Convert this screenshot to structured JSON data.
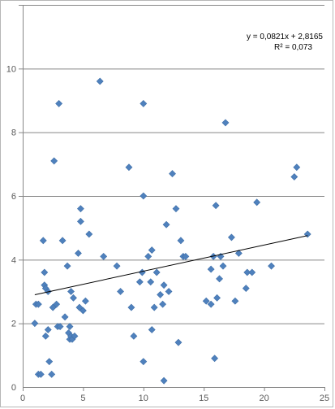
{
  "chart_data": {
    "type": "scatter",
    "title": "",
    "xlabel": "",
    "ylabel": "",
    "xlim": [
      0,
      25
    ],
    "ylim": [
      0,
      12
    ],
    "x_ticks": [
      0,
      5,
      10,
      15,
      20,
      25
    ],
    "y_ticks": [
      0,
      2,
      4,
      6,
      8,
      10
    ],
    "y_grid": [
      2,
      4,
      6,
      8,
      10,
      12
    ],
    "grid": "horizontal",
    "legend": "none",
    "colors": {
      "marker": "#4f81bd",
      "trendline": "#000000",
      "gridline": "#878787"
    },
    "series": [
      {
        "marker": "diamond",
        "points": [
          [
            1.0,
            2.0
          ],
          [
            1.1,
            2.6
          ],
          [
            1.3,
            2.6
          ],
          [
            1.3,
            0.4
          ],
          [
            1.5,
            0.4
          ],
          [
            1.7,
            4.6
          ],
          [
            1.8,
            3.2
          ],
          [
            1.8,
            3.6
          ],
          [
            1.9,
            1.6
          ],
          [
            1.9,
            3.1
          ],
          [
            2.1,
            3.0
          ],
          [
            2.1,
            1.8
          ],
          [
            2.2,
            0.8
          ],
          [
            2.4,
            0.4
          ],
          [
            2.5,
            2.5
          ],
          [
            2.6,
            7.1
          ],
          [
            2.8,
            2.6
          ],
          [
            2.9,
            1.9
          ],
          [
            3.0,
            8.9
          ],
          [
            3.1,
            1.9
          ],
          [
            3.3,
            4.6
          ],
          [
            3.5,
            2.2
          ],
          [
            3.7,
            3.8
          ],
          [
            3.8,
            1.7
          ],
          [
            3.9,
            1.9
          ],
          [
            3.9,
            1.5
          ],
          [
            4.0,
            3.0
          ],
          [
            4.0,
            1.6
          ],
          [
            4.1,
            1.5
          ],
          [
            4.2,
            2.8
          ],
          [
            4.3,
            1.6
          ],
          [
            4.6,
            4.2
          ],
          [
            4.7,
            2.5
          ],
          [
            4.8,
            5.2
          ],
          [
            4.8,
            5.6
          ],
          [
            5.0,
            2.4
          ],
          [
            5.2,
            2.7
          ],
          [
            5.5,
            4.8
          ],
          [
            6.4,
            9.6
          ],
          [
            6.7,
            4.1
          ],
          [
            7.8,
            3.8
          ],
          [
            8.1,
            3.0
          ],
          [
            8.8,
            6.9
          ],
          [
            9.0,
            2.5
          ],
          [
            9.2,
            1.6
          ],
          [
            9.7,
            3.3
          ],
          [
            9.9,
            3.6
          ],
          [
            10.0,
            0.8
          ],
          [
            10.0,
            8.9
          ],
          [
            10.0,
            6.0
          ],
          [
            10.4,
            4.1
          ],
          [
            10.6,
            3.3
          ],
          [
            10.7,
            4.3
          ],
          [
            10.7,
            1.8
          ],
          [
            10.9,
            2.5
          ],
          [
            11.1,
            3.6
          ],
          [
            11.4,
            2.9
          ],
          [
            11.6,
            2.6
          ],
          [
            11.7,
            0.2
          ],
          [
            11.7,
            3.2
          ],
          [
            11.9,
            5.1
          ],
          [
            12.1,
            3.0
          ],
          [
            12.4,
            6.7
          ],
          [
            12.7,
            5.6
          ],
          [
            12.9,
            1.4
          ],
          [
            13.1,
            4.6
          ],
          [
            13.3,
            4.1
          ],
          [
            13.5,
            4.1
          ],
          [
            15.2,
            2.7
          ],
          [
            15.6,
            2.6
          ],
          [
            15.6,
            3.7
          ],
          [
            15.8,
            4.1
          ],
          [
            15.9,
            0.9
          ],
          [
            16.0,
            5.7
          ],
          [
            16.1,
            2.8
          ],
          [
            16.3,
            3.4
          ],
          [
            16.4,
            4.1
          ],
          [
            16.6,
            3.8
          ],
          [
            16.8,
            8.3
          ],
          [
            17.3,
            4.7
          ],
          [
            17.6,
            2.7
          ],
          [
            17.9,
            4.2
          ],
          [
            18.5,
            3.1
          ],
          [
            18.6,
            3.6
          ],
          [
            19.0,
            3.6
          ],
          [
            19.4,
            5.8
          ],
          [
            20.6,
            3.8
          ],
          [
            22.5,
            6.6
          ],
          [
            22.7,
            6.9
          ],
          [
            23.6,
            4.8
          ]
        ]
      }
    ],
    "trendline": {
      "type": "linear",
      "slope": 0.0821,
      "intercept": 2.8165,
      "x_range": [
        1.0,
        23.6
      ],
      "equation": "y = 0,0821x + 2,8165",
      "r_squared": "R² = 0,073"
    }
  }
}
